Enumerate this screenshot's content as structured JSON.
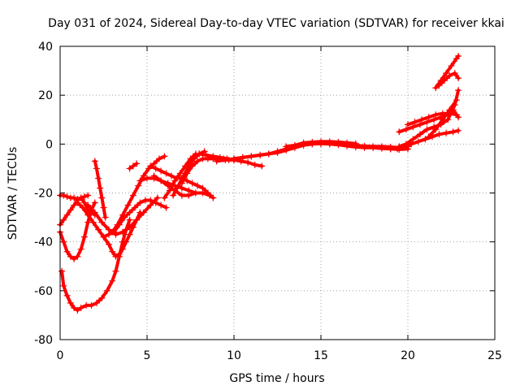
{
  "chart_data": {
    "type": "scatter",
    "title": "Day 031 of 2024, Sidereal Day-to-day VTEC variation (SDTVAR) for receiver kkai",
    "xlabel": "GPS time / hours",
    "ylabel": "SDTVAR / TECUs",
    "xlim": [
      0,
      25
    ],
    "ylim": [
      -80,
      40
    ],
    "xticks": [
      0,
      5,
      10,
      15,
      20,
      25
    ],
    "yticks": [
      -80,
      -60,
      -40,
      -20,
      0,
      20,
      40
    ],
    "xtick_labels": [
      "0",
      "5",
      "10",
      "15",
      "20",
      "25"
    ],
    "ytick_labels": [
      "-80",
      "-60",
      "-40",
      "-20",
      "0",
      "20",
      "40"
    ],
    "grid": true,
    "legend": "none",
    "marker": "+",
    "color": "#ff0000",
    "series": [
      {
        "name": "track-1",
        "x": [
          0.1,
          0.2,
          0.4,
          0.6,
          0.8,
          1.0,
          1.2,
          1.5,
          1.8,
          2.1,
          2.4,
          2.7,
          3.0,
          3.2,
          3.4,
          3.6,
          3.8,
          4.0
        ],
        "y": [
          -52,
          -58,
          -62,
          -65,
          -67,
          -68,
          -67,
          -66,
          -66,
          -65,
          -63,
          -60,
          -56,
          -52,
          -46,
          -40,
          -35,
          -31
        ]
      },
      {
        "name": "track-2",
        "x": [
          0.0,
          0.2,
          0.4,
          0.6,
          0.8,
          1.0,
          1.2,
          1.4,
          1.6,
          1.8,
          2.0
        ],
        "y": [
          -36,
          -40,
          -44,
          -46,
          -47,
          -46,
          -43,
          -38,
          -32,
          -27,
          -24
        ]
      },
      {
        "name": "track-3",
        "x": [
          0.0,
          0.2,
          0.4,
          0.6,
          0.8,
          1.0,
          1.2,
          1.4,
          1.6,
          1.8,
          2.0
        ],
        "y": [
          -33,
          -31,
          -29,
          -27,
          -25,
          -23,
          -22,
          -24,
          -27,
          -28,
          -29
        ]
      },
      {
        "name": "track-4",
        "x": [
          0.0,
          0.2,
          0.4,
          0.6,
          0.8,
          1.0,
          1.2,
          1.4,
          1.6
        ],
        "y": [
          -21,
          -21,
          -21.5,
          -22,
          -22,
          -22.5,
          -22,
          -21.5,
          -21
        ]
      },
      {
        "name": "track-5",
        "x": [
          1.0,
          1.3,
          1.6,
          1.9,
          2.2,
          2.5,
          2.8,
          3.0,
          3.2,
          3.4,
          3.6,
          3.8,
          4.0,
          4.2,
          4.4,
          4.6
        ],
        "y": [
          -24,
          -26,
          -29,
          -32,
          -35,
          -38,
          -41,
          -44,
          -46,
          -45,
          -43,
          -40,
          -37,
          -34,
          -31,
          -28
        ]
      },
      {
        "name": "track-6",
        "x": [
          1.6,
          2.0,
          2.4,
          2.8,
          3.2,
          3.6,
          4.0,
          4.4,
          4.8,
          5.2,
          5.6
        ],
        "y": [
          -25,
          -28,
          -32,
          -35,
          -37,
          -36,
          -34,
          -31,
          -28,
          -25,
          -22
        ]
      },
      {
        "name": "track-7",
        "x": [
          2.0,
          2.1,
          2.2,
          2.3,
          2.4,
          2.5,
          2.6
        ],
        "y": [
          -7,
          -10,
          -14,
          -18,
          -22,
          -26,
          -30
        ]
      },
      {
        "name": "track-8",
        "x": [
          2.5,
          2.8,
          3.1,
          3.4,
          3.7,
          4.0,
          4.3,
          4.6,
          4.9,
          5.2,
          5.5,
          5.8,
          6.1
        ],
        "y": [
          -38,
          -37,
          -36,
          -33,
          -30,
          -28,
          -26,
          -24,
          -23,
          -23,
          -24,
          -25,
          -26
        ]
      },
      {
        "name": "track-9",
        "x": [
          3.0,
          3.3,
          3.6,
          3.9,
          4.2,
          4.5,
          4.8,
          5.1,
          5.4,
          5.7,
          6.0
        ],
        "y": [
          -36,
          -33,
          -29,
          -25,
          -21,
          -17,
          -13,
          -10,
          -8,
          -6,
          -5
        ]
      },
      {
        "name": "track-10",
        "x": [
          4.0,
          4.2,
          4.4
        ],
        "y": [
          -10,
          -9,
          -8
        ]
      },
      {
        "name": "track-11",
        "x": [
          4.6,
          5.0,
          5.4,
          5.8,
          6.2,
          6.6,
          7.0,
          7.4,
          7.8
        ],
        "y": [
          -15,
          -14,
          -14,
          -15,
          -16,
          -17,
          -18,
          -19,
          -20
        ]
      },
      {
        "name": "track-12",
        "x": [
          5.4,
          5.8,
          6.2,
          6.6,
          7.0,
          7.4,
          7.8,
          8.2,
          8.6
        ],
        "y": [
          -13,
          -15,
          -17,
          -19,
          -21,
          -21,
          -20,
          -20,
          -21
        ]
      },
      {
        "name": "track-13",
        "x": [
          5.2,
          5.5,
          5.8,
          6.1,
          6.4,
          6.7,
          7.0,
          7.3,
          7.6,
          7.9,
          8.2,
          8.5,
          8.8
        ],
        "y": [
          -9,
          -10,
          -11,
          -12,
          -13,
          -14,
          -14,
          -15,
          -16,
          -17,
          -18,
          -20,
          -22
        ]
      },
      {
        "name": "track-14",
        "x": [
          6.0,
          6.3,
          6.6,
          6.9,
          7.2,
          7.5,
          7.8
        ],
        "y": [
          -22,
          -19,
          -15,
          -12,
          -9,
          -6,
          -4
        ]
      },
      {
        "name": "track-15",
        "x": [
          6.5,
          6.8,
          7.1,
          7.4,
          7.7,
          8.0,
          8.3
        ],
        "y": [
          -21,
          -17,
          -13,
          -9,
          -6,
          -4,
          -3
        ]
      },
      {
        "name": "track-16",
        "x": [
          7.0,
          7.3,
          7.6,
          7.9,
          8.2,
          8.5,
          8.8,
          9.1,
          9.4,
          9.7,
          10.0
        ],
        "y": [
          -16,
          -12,
          -9,
          -7,
          -6,
          -6,
          -6,
          -6,
          -6,
          -6.5,
          -6.5
        ]
      },
      {
        "name": "track-17",
        "x": [
          8.0,
          8.4,
          8.8,
          9.2,
          9.6,
          10.0,
          10.4,
          10.8,
          11.2,
          11.6
        ],
        "y": [
          -4,
          -4.5,
          -5,
          -5.5,
          -6,
          -6.5,
          -7,
          -7.5,
          -8.5,
          -9
        ]
      },
      {
        "name": "track-18",
        "x": [
          9.0,
          9.5,
          10.0,
          10.5,
          11.0,
          11.5,
          12.0,
          12.5,
          13.0,
          13.5,
          14.0,
          14.5,
          15.0
        ],
        "y": [
          -7,
          -6.5,
          -6,
          -5.5,
          -5,
          -4.5,
          -4,
          -3.5,
          -2.5,
          -1.5,
          -0.5,
          0,
          0.2
        ]
      },
      {
        "name": "track-19",
        "x": [
          10.0,
          10.5,
          11.0,
          11.5,
          12.0,
          12.5,
          13.0,
          13.5,
          14.0,
          14.5,
          15.0,
          15.5,
          16.0,
          16.5,
          17.0
        ],
        "y": [
          -6,
          -5.5,
          -5,
          -4.5,
          -4,
          -3,
          -2,
          -0.5,
          0.5,
          0.8,
          1,
          1,
          0.8,
          0.5,
          0.2
        ]
      },
      {
        "name": "track-20",
        "x": [
          13.0,
          13.5,
          14.0,
          14.5,
          15.0,
          15.5,
          16.0,
          16.5,
          17.0,
          17.5,
          18.0,
          18.5,
          19.0,
          19.5,
          20.0
        ],
        "y": [
          -1,
          -0.5,
          0,
          0.3,
          0.2,
          0,
          -0.3,
          -0.8,
          -1.2,
          -1.5,
          -1.5,
          -1.8,
          -2,
          -2.2,
          -2
        ]
      },
      {
        "name": "track-21",
        "x": [
          15.5,
          16.0,
          16.5,
          17.0,
          17.5,
          18.0,
          18.5,
          19.0,
          19.5,
          20.0
        ],
        "y": [
          0.5,
          0.3,
          -0.2,
          -0.6,
          -0.8,
          -1,
          -1,
          -1.2,
          -1.5,
          -1
        ]
      },
      {
        "name": "track-22",
        "x": [
          19.0,
          19.4,
          19.8,
          20.2,
          20.6,
          21.0,
          21.4,
          21.8,
          22.2,
          22.6,
          22.9
        ],
        "y": [
          -2,
          -2,
          -1,
          0,
          1,
          2,
          3,
          4,
          4.5,
          5,
          5.5
        ]
      },
      {
        "name": "track-23",
        "x": [
          19.5,
          19.9,
          20.3,
          20.7,
          21.1,
          21.5,
          21.9,
          22.3,
          22.7,
          22.9
        ],
        "y": [
          -1,
          0,
          2,
          4,
          6,
          7,
          8,
          10,
          16,
          22
        ]
      },
      {
        "name": "track-24",
        "x": [
          19.5,
          19.9,
          20.3,
          20.7,
          21.1,
          21.5,
          21.9,
          22.3,
          22.6,
          22.9
        ],
        "y": [
          5,
          6,
          7,
          8,
          9,
          10,
          11,
          12,
          14,
          11
        ]
      },
      {
        "name": "track-25",
        "x": [
          20.0,
          20.4,
          20.8,
          21.2,
          21.6,
          22.0,
          22.4,
          22.8
        ],
        "y": [
          8,
          9,
          10,
          11,
          12,
          12.5,
          12.5,
          12
        ]
      },
      {
        "name": "track-26",
        "x": [
          21.2,
          21.6,
          22.0,
          22.4,
          22.8
        ],
        "y": [
          3,
          6,
          10,
          14,
          18
        ]
      },
      {
        "name": "track-27",
        "x": [
          21.8,
          22.1,
          22.4,
          22.7,
          22.9
        ],
        "y": [
          24,
          26,
          28,
          29,
          27
        ]
      },
      {
        "name": "track-28",
        "x": [
          21.6,
          21.9,
          22.2,
          22.5,
          22.8,
          22.9
        ],
        "y": [
          23,
          26,
          29,
          32,
          35,
          36
        ]
      }
    ]
  }
}
